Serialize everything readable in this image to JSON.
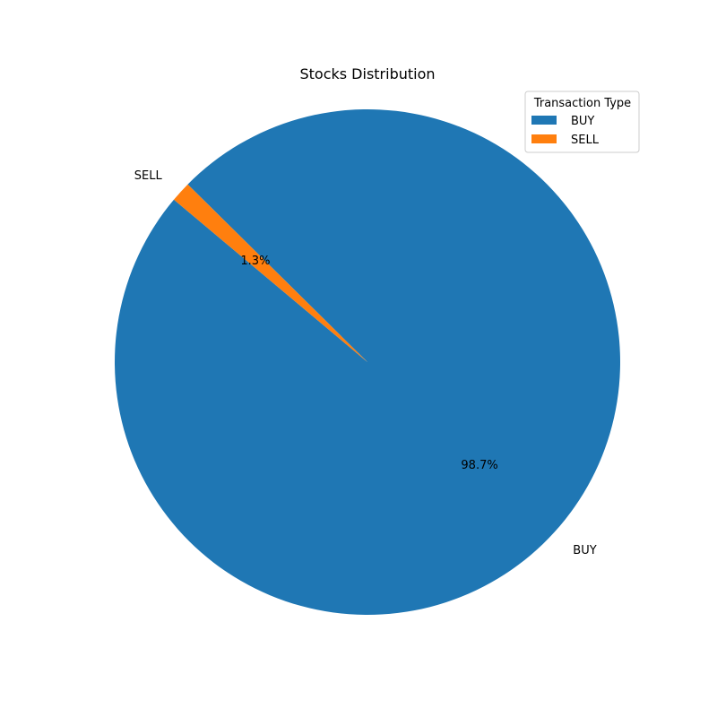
{
  "chart_data": {
    "type": "pie",
    "title": "Stocks Distribution",
    "slices": [
      {
        "label": "BUY",
        "value": 98.7,
        "pct_label": "98.7%",
        "color": "#1f77b4"
      },
      {
        "label": "SELL",
        "value": 1.3,
        "pct_label": "1.3%",
        "color": "#ff7f0e"
      }
    ],
    "start_angle_deg": 140,
    "legend": {
      "title": "Transaction Type",
      "placement": "top-right",
      "entries": [
        "BUY",
        "SELL"
      ]
    }
  }
}
